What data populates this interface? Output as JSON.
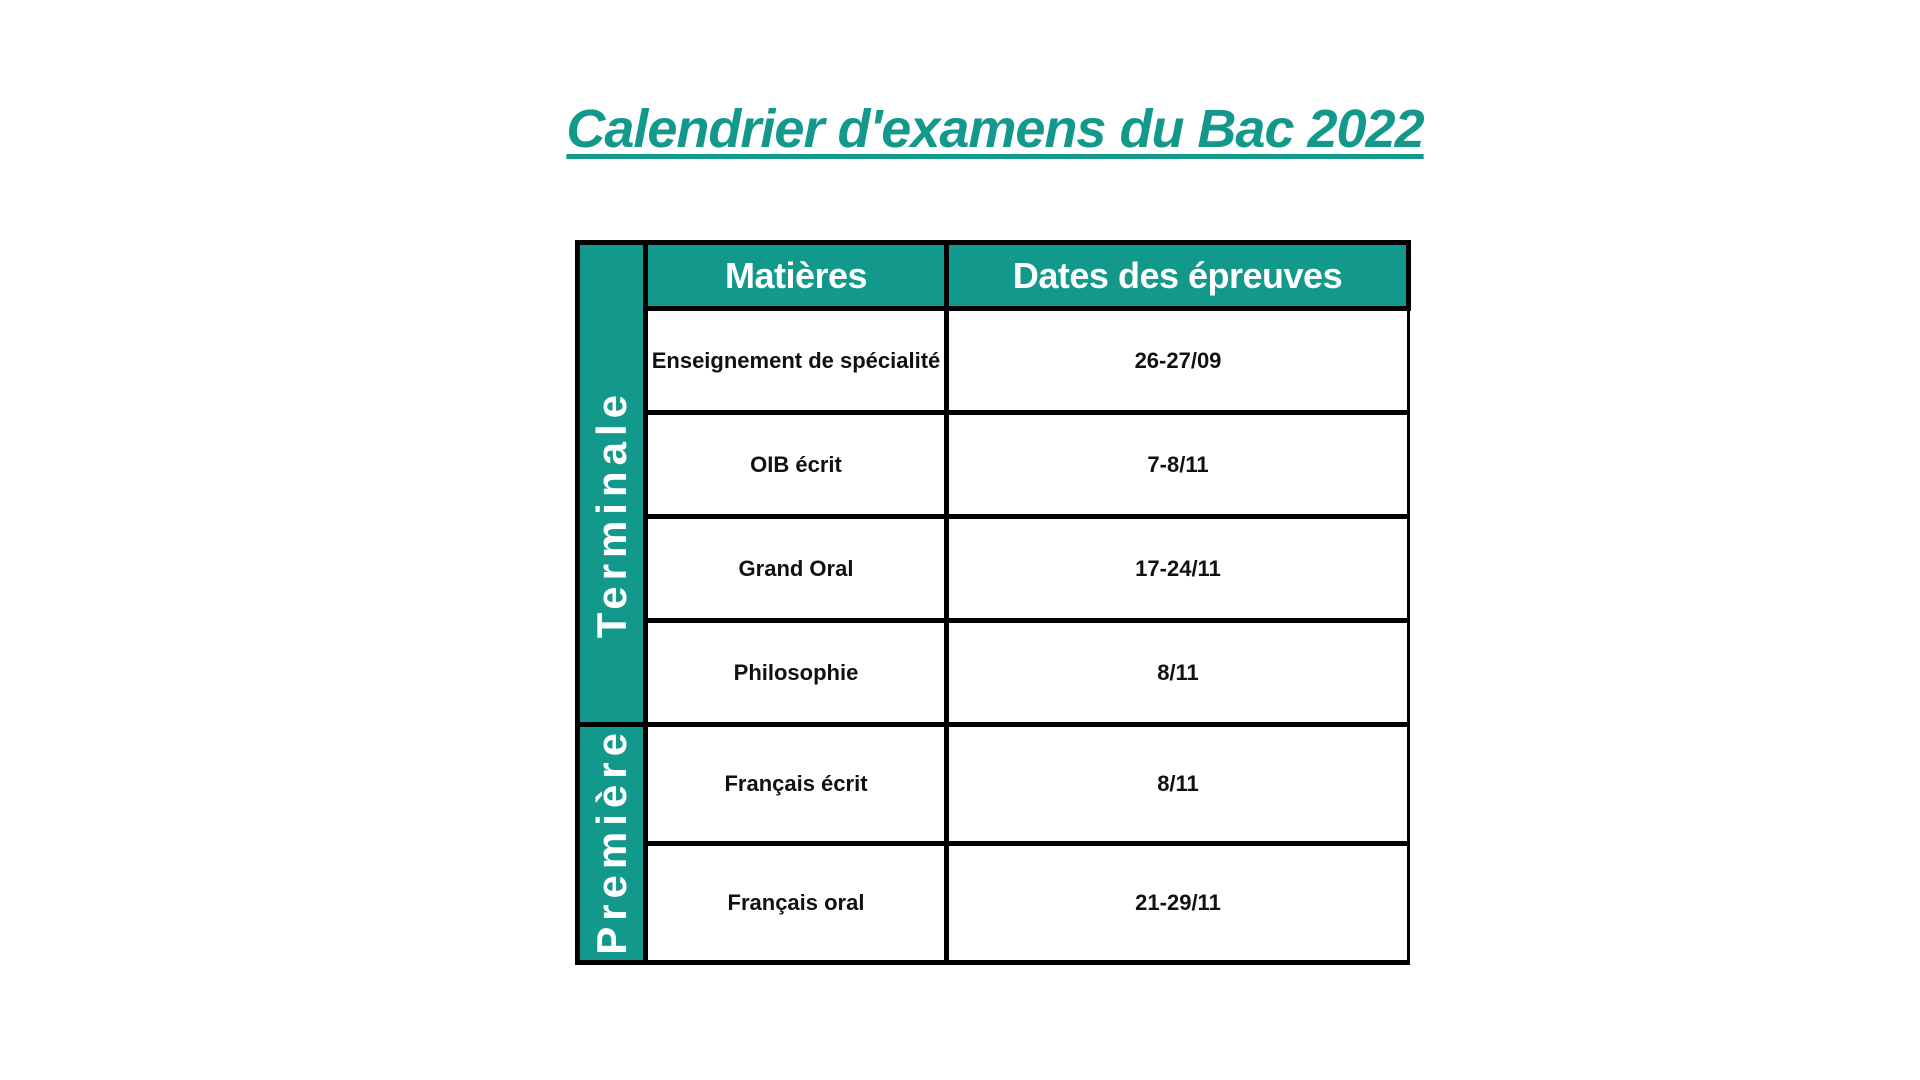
{
  "page": {
    "title": "Calendrier d'examens du Bac 2022",
    "colors": {
      "accent_teal": "#13998b",
      "border_black": "#000000",
      "header_text": "#ffffff",
      "body_text": "#111111",
      "background": "#ffffff"
    }
  },
  "table": {
    "headers": {
      "matieres": "Matières",
      "dates": "Dates des épreuves"
    },
    "groups": [
      {
        "label": "Terminale",
        "rows": [
          {
            "matiere": "Enseignement de spécialité",
            "date": "26-27/09"
          },
          {
            "matiere": "OIB écrit",
            "date": "7-8/11"
          },
          {
            "matiere": "Grand Oral",
            "date": "17-24/11"
          },
          {
            "matiere": "Philosophie",
            "date": "8/11"
          }
        ]
      },
      {
        "label": "Première",
        "rows": [
          {
            "matiere": "Français écrit",
            "date": "8/11"
          },
          {
            "matiere": "Français oral",
            "date": "21-29/11"
          }
        ]
      }
    ]
  }
}
